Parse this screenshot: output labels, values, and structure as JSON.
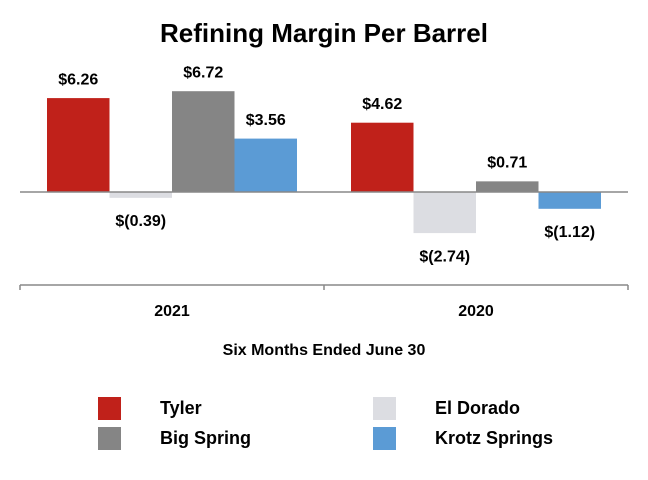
{
  "chart_data": {
    "type": "bar",
    "title": "Refining Margin Per Barrel",
    "x_label": "Six Months Ended June 30",
    "categories": [
      "2021",
      "2020"
    ],
    "series": [
      {
        "name": "Tyler",
        "color": "#c0211a",
        "values": [
          6.26,
          4.62
        ],
        "value_labels": [
          "$6.26",
          "$4.62"
        ]
      },
      {
        "name": "El Dorado",
        "color": "#dcdde2",
        "values": [
          -0.39,
          -2.74
        ],
        "value_labels": [
          "$(0.39)",
          "$(2.74)"
        ]
      },
      {
        "name": "Big Spring",
        "color": "#858585",
        "values": [
          6.72,
          0.71
        ],
        "value_labels": [
          "$6.72",
          "$0.71"
        ]
      },
      {
        "name": "Krotz Springs",
        "color": "#5b9bd5",
        "values": [
          3.56,
          -1.12
        ],
        "value_labels": [
          "$3.56",
          "$(1.12)"
        ]
      }
    ],
    "ylim": [
      -6,
      8
    ]
  }
}
